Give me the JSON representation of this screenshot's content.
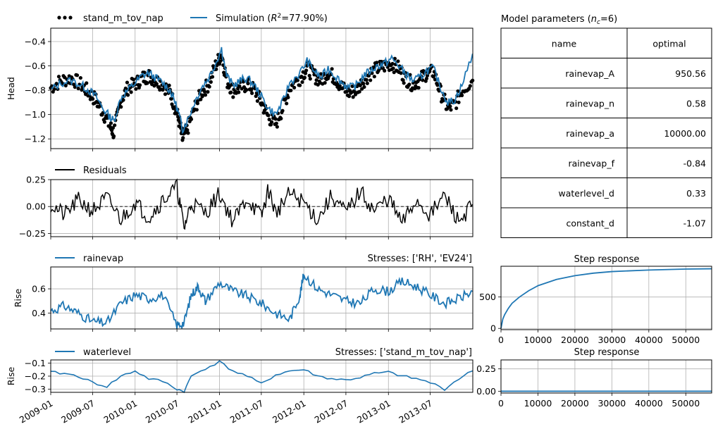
{
  "colors": {
    "simulation": "#1f77b4",
    "observed": "#000000",
    "residuals": "#000000",
    "grid": "#b0b0b0"
  },
  "date_ticks": [
    "2009-01",
    "2009-07",
    "2010-01",
    "2010-07",
    "2011-01",
    "2011-07",
    "2012-01",
    "2012-07",
    "2013-01",
    "2013-07"
  ],
  "chart_data": [
    {
      "id": "head",
      "type": "line",
      "ylabel": "Head",
      "ylim": [
        -1.28,
        -0.29
      ],
      "yticks": [
        -1.2,
        -1.0,
        -0.8,
        -0.6,
        -0.4
      ],
      "ytick_labels": [
        "−1.2",
        "−1.0",
        "−0.8",
        "−0.6",
        "−0.4"
      ],
      "grid": true,
      "legend": [
        "stand_m_tov_nap",
        "Simulation ($R^2$=77.90%)"
      ],
      "legend_labels": {
        "observed": "stand_m_tov_nap",
        "simulation_prefix": "Simulation (",
        "simulation_r2": "R",
        "simulation_r2_sup": "2",
        "simulation_suffix": "=77.90%)"
      },
      "series": [
        {
          "name": "stand_m_tov_nap",
          "style": "points",
          "x": [
            "2009-01-01",
            "2009-02-15",
            "2009-04-01",
            "2009-05-15",
            "2009-06-15",
            "2009-07-15",
            "2009-08-15",
            "2009-09-15",
            "2009-10-01",
            "2009-11-01",
            "2009-12-01",
            "2010-01-01",
            "2010-02-01",
            "2010-03-01",
            "2010-04-01",
            "2010-05-01",
            "2010-06-01",
            "2010-06-20",
            "2010-07-10",
            "2010-07-25",
            "2010-08-15",
            "2010-09-15",
            "2010-10-15",
            "2010-11-15",
            "2010-12-15",
            "2011-01-10",
            "2011-02-01",
            "2011-03-01",
            "2011-04-01",
            "2011-05-01",
            "2011-06-01",
            "2011-07-01",
            "2011-08-01",
            "2011-09-01",
            "2011-10-01",
            "2011-11-01",
            "2011-12-15",
            "2012-01-15",
            "2012-02-15",
            "2012-03-15",
            "2012-04-15",
            "2012-05-15",
            "2012-06-15",
            "2012-07-15",
            "2012-08-15",
            "2012-09-15",
            "2012-10-15",
            "2012-11-15",
            "2012-12-15",
            "2013-01-15",
            "2013-02-15",
            "2013-03-15",
            "2013-04-15",
            "2013-05-15",
            "2013-06-15",
            "2013-07-15",
            "2013-08-15",
            "2013-09-15",
            "2013-10-15",
            "2013-11-15",
            "2013-12-31"
          ],
          "values": [
            -0.78,
            -0.72,
            -0.7,
            -0.76,
            -0.82,
            -0.88,
            -0.98,
            -1.1,
            -1.15,
            -0.88,
            -0.78,
            -0.75,
            -0.7,
            -0.68,
            -0.72,
            -0.75,
            -0.82,
            -0.92,
            -1.05,
            -1.2,
            -1.12,
            -0.95,
            -0.82,
            -0.75,
            -0.6,
            -0.5,
            -0.72,
            -0.8,
            -0.78,
            -0.75,
            -0.8,
            -0.9,
            -1.02,
            -1.08,
            -0.95,
            -0.78,
            -0.7,
            -0.62,
            -0.68,
            -0.72,
            -0.65,
            -0.7,
            -0.78,
            -0.82,
            -0.8,
            -0.72,
            -0.66,
            -0.62,
            -0.6,
            -0.58,
            -0.62,
            -0.7,
            -0.75,
            -0.72,
            -0.66,
            -0.65,
            -0.82,
            -0.95,
            -0.92,
            -0.8,
            -0.72
          ]
        },
        {
          "name": "Simulation",
          "style": "line",
          "x": [
            "2009-01-01",
            "2009-02-15",
            "2009-04-01",
            "2009-05-15",
            "2009-06-15",
            "2009-07-15",
            "2009-08-15",
            "2009-09-15",
            "2009-10-01",
            "2009-11-01",
            "2009-12-01",
            "2010-01-01",
            "2010-02-01",
            "2010-03-01",
            "2010-04-01",
            "2010-05-01",
            "2010-06-01",
            "2010-06-20",
            "2010-07-10",
            "2010-07-25",
            "2010-08-15",
            "2010-09-15",
            "2010-10-15",
            "2010-11-15",
            "2010-12-15",
            "2011-01-10",
            "2011-02-01",
            "2011-03-01",
            "2011-04-01",
            "2011-05-01",
            "2011-06-01",
            "2011-07-01",
            "2011-08-01",
            "2011-09-01",
            "2011-10-01",
            "2011-11-01",
            "2011-12-15",
            "2012-01-15",
            "2012-02-15",
            "2012-03-15",
            "2012-04-15",
            "2012-05-15",
            "2012-06-15",
            "2012-07-15",
            "2012-08-15",
            "2012-09-15",
            "2012-10-15",
            "2012-11-15",
            "2012-12-15",
            "2013-01-15",
            "2013-02-15",
            "2013-03-15",
            "2013-04-15",
            "2013-05-15",
            "2013-06-15",
            "2013-07-15",
            "2013-08-15",
            "2013-09-15",
            "2013-10-15",
            "2013-11-15",
            "2013-12-31"
          ],
          "values": [
            -0.8,
            -0.74,
            -0.72,
            -0.76,
            -0.8,
            -0.85,
            -0.95,
            -1.02,
            -1.05,
            -0.86,
            -0.8,
            -0.74,
            -0.68,
            -0.66,
            -0.7,
            -0.74,
            -0.8,
            -0.88,
            -1.0,
            -1.12,
            -1.05,
            -0.9,
            -0.78,
            -0.7,
            -0.58,
            -0.46,
            -0.68,
            -0.76,
            -0.72,
            -0.7,
            -0.76,
            -0.85,
            -0.95,
            -1.0,
            -0.9,
            -0.74,
            -0.66,
            -0.56,
            -0.64,
            -0.7,
            -0.62,
            -0.68,
            -0.74,
            -0.78,
            -0.76,
            -0.68,
            -0.64,
            -0.6,
            -0.58,
            -0.54,
            -0.6,
            -0.66,
            -0.72,
            -0.7,
            -0.64,
            -0.62,
            -0.78,
            -0.9,
            -0.88,
            -0.76,
            -0.5
          ]
        }
      ]
    },
    {
      "id": "residuals",
      "type": "line",
      "ylim": [
        -0.28,
        0.25
      ],
      "yticks": [
        -0.25,
        0.0,
        0.25
      ],
      "ytick_labels": [
        "−0.25",
        "0.00",
        "0.25"
      ],
      "grid": true,
      "legend": [
        "Residuals"
      ],
      "series": [
        {
          "name": "Residuals",
          "x": [
            "2009-01-01",
            "2009-03-01",
            "2009-05-01",
            "2009-07-01",
            "2009-09-01",
            "2009-11-01",
            "2010-01-01",
            "2010-03-01",
            "2010-05-01",
            "2010-07-01",
            "2010-08-01",
            "2010-09-01",
            "2010-11-01",
            "2011-01-01",
            "2011-03-01",
            "2011-05-01",
            "2011-07-01",
            "2011-08-01",
            "2011-09-01",
            "2011-11-01",
            "2012-01-01",
            "2012-03-01",
            "2012-05-01",
            "2012-07-01",
            "2012-09-01",
            "2012-11-01",
            "2013-01-01",
            "2013-03-01",
            "2013-05-01",
            "2013-07-01",
            "2013-09-01",
            "2013-11-01",
            "2013-12-31"
          ],
          "values": [
            0.02,
            -0.08,
            0.06,
            -0.04,
            0.08,
            -0.12,
            0.04,
            -0.1,
            0.06,
            0.18,
            -0.2,
            0.04,
            -0.06,
            0.12,
            -0.14,
            0.08,
            -0.1,
            0.16,
            -0.06,
            0.12,
            0.04,
            -0.12,
            0.1,
            -0.06,
            0.14,
            -0.04,
            0.08,
            -0.16,
            0.06,
            -0.08,
            0.1,
            -0.14,
            0.02
          ]
        }
      ]
    },
    {
      "id": "rainevap",
      "type": "line",
      "ylabel": "Rise",
      "ylim": [
        0.27,
        0.78
      ],
      "yticks": [
        0.4,
        0.6
      ],
      "ytick_labels": [
        "0.4",
        "0.6"
      ],
      "grid": true,
      "legend": [
        "rainevap"
      ],
      "annotation": "Stresses: ['RH', 'EV24']",
      "series": [
        {
          "name": "rainevap",
          "x": [
            "2009-01-01",
            "2009-03-01",
            "2009-05-01",
            "2009-07-01",
            "2009-09-01",
            "2009-11-01",
            "2010-01-01",
            "2010-03-01",
            "2010-05-01",
            "2010-07-01",
            "2010-08-01",
            "2010-09-01",
            "2010-10-01",
            "2010-11-01",
            "2011-01-01",
            "2011-03-01",
            "2011-05-01",
            "2011-07-01",
            "2011-09-01",
            "2011-11-01",
            "2011-12-15",
            "2012-01-01",
            "2012-03-01",
            "2012-05-01",
            "2012-07-01",
            "2012-09-01",
            "2012-11-01",
            "2013-01-01",
            "2013-03-01",
            "2013-05-01",
            "2013-07-01",
            "2013-09-01",
            "2013-11-01",
            "2013-12-31"
          ],
          "values": [
            0.42,
            0.46,
            0.4,
            0.33,
            0.32,
            0.48,
            0.55,
            0.52,
            0.55,
            0.3,
            0.32,
            0.55,
            0.62,
            0.5,
            0.65,
            0.58,
            0.54,
            0.48,
            0.4,
            0.35,
            0.55,
            0.72,
            0.6,
            0.55,
            0.5,
            0.48,
            0.6,
            0.58,
            0.66,
            0.62,
            0.55,
            0.48,
            0.52,
            0.58
          ]
        }
      ]
    },
    {
      "id": "waterlevel",
      "type": "line",
      "ylabel": "Rise",
      "ylim": [
        -0.325,
        -0.075
      ],
      "yticks": [
        -0.3,
        -0.2,
        -0.1
      ],
      "ytick_labels": [
        "−0.3",
        "−0.2",
        "−0.1"
      ],
      "grid": true,
      "legend": [
        "waterlevel"
      ],
      "annotation": "Stresses: ['stand_m_tov_nap']",
      "series": [
        {
          "name": "waterlevel",
          "x": [
            "2009-01-01",
            "2009-03-01",
            "2009-05-01",
            "2009-07-01",
            "2009-09-01",
            "2009-11-01",
            "2010-01-01",
            "2010-03-01",
            "2010-05-01",
            "2010-07-01",
            "2010-08-01",
            "2010-09-01",
            "2010-11-01",
            "2011-01-01",
            "2011-03-01",
            "2011-05-01",
            "2011-07-01",
            "2011-09-01",
            "2011-11-01",
            "2012-01-01",
            "2012-03-01",
            "2012-05-01",
            "2012-07-01",
            "2012-09-01",
            "2012-11-01",
            "2013-01-01",
            "2013-03-01",
            "2013-05-01",
            "2013-07-01",
            "2013-09-01",
            "2013-11-01",
            "2013-12-31"
          ],
          "values": [
            -0.17,
            -0.18,
            -0.2,
            -0.25,
            -0.28,
            -0.2,
            -0.16,
            -0.22,
            -0.24,
            -0.3,
            -0.32,
            -0.2,
            -0.14,
            -0.09,
            -0.16,
            -0.2,
            -0.26,
            -0.19,
            -0.16,
            -0.15,
            -0.2,
            -0.22,
            -0.23,
            -0.21,
            -0.18,
            -0.17,
            -0.2,
            -0.22,
            -0.25,
            -0.3,
            -0.22,
            -0.16
          ]
        }
      ]
    },
    {
      "id": "step_rainevap",
      "type": "line",
      "title": "Step response",
      "xlim": [
        0,
        57000
      ],
      "ylim": [
        -20,
        990
      ],
      "xticks": [
        0,
        10000,
        20000,
        30000,
        40000,
        50000
      ],
      "yticks": [
        0,
        500
      ],
      "grid": true,
      "series": [
        {
          "name": "",
          "x": [
            0,
            500,
            1000,
            2000,
            3000,
            5000,
            7500,
            10000,
            15000,
            20000,
            25000,
            30000,
            40000,
            50000,
            57000
          ],
          "values": [
            0,
            150,
            220,
            320,
            400,
            500,
            600,
            680,
            780,
            840,
            880,
            905,
            930,
            945,
            950
          ]
        }
      ]
    },
    {
      "id": "step_waterlevel",
      "type": "line",
      "title": "Step response",
      "xlim": [
        0,
        57000
      ],
      "ylim": [
        -0.02,
        0.35
      ],
      "xticks": [
        0,
        10000,
        20000,
        30000,
        40000,
        50000
      ],
      "yticks": [
        0.0,
        0.25
      ],
      "ytick_labels": [
        "0.00",
        "0.25"
      ],
      "grid": true,
      "series": [
        {
          "name": "",
          "x": [
            0,
            57000
          ],
          "values": [
            0.0,
            0.0
          ]
        }
      ]
    },
    {
      "id": "parameters",
      "type": "table",
      "title_main": "Model parameters (",
      "title_n": "n",
      "title_sub": "c",
      "title_end": "=6)",
      "columns": [
        "name",
        "optimal"
      ],
      "rows": [
        [
          "rainevap_A",
          "950.56"
        ],
        [
          "rainevap_n",
          "0.58"
        ],
        [
          "rainevap_a",
          "10000.00"
        ],
        [
          "rainevap_f",
          "-0.84"
        ],
        [
          "waterlevel_d",
          "0.33"
        ],
        [
          "constant_d",
          "-1.07"
        ]
      ]
    }
  ]
}
